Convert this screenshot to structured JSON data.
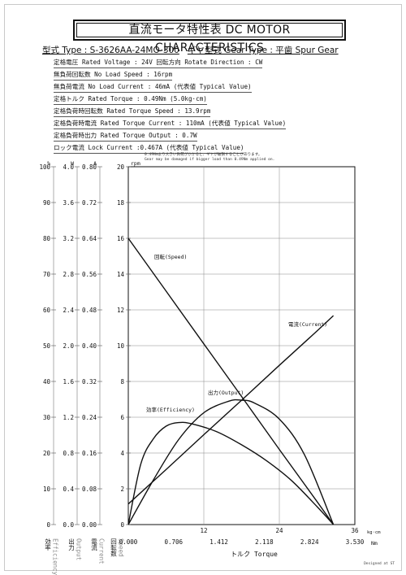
{
  "sheet": {
    "title": "直流モータ特性表 DC MOTOR CHARACTERISTICS",
    "model_label": "型式 Type : S-3626AA-24MO-300",
    "gear_label": "ギヤ型式 Gear Type : 平歯  Spur Gear",
    "specs": [
      "定格電圧 Rated Voltage : 24V   回転方向 Rotate Direction : CW",
      "無負荷回転数 No Load Speed : 16rpm",
      "無負荷電流 No Load Current : 46mA (代表値 Typical Value)",
      "定格トルク Rated Torque : 0.49Nm (5.0kg·cm)",
      "定格負荷時回転数 Rated Torque Speed : 13.9rpm",
      "定格負荷時電流 Rated Torque Current : 110mA (代表値 Typical Value)",
      "定格負荷時出力 Rated Torque Output : 0.7W",
      "ロック電流 Lock Current :0.467A (代表値 Typical Value)"
    ],
    "warning_jp": "0.49Nmより大きい負荷がかかると、ギヤが破損することがあります。",
    "warning_en": "Gear may be damaged if bigger load than 0.49Nm applied on.",
    "signature": "Designed at ST"
  },
  "chart_data": {
    "type": "line",
    "x_label": "トルク Torque",
    "x_unit_top": "kg·cm",
    "x_unit_bottom": "Nm",
    "x_ticks_kgcm": [
      "12",
      "24",
      "36"
    ],
    "x_ticks_nm": [
      "0.000",
      "0.706",
      "1.412",
      "2.118",
      "2.824",
      "3.530"
    ],
    "xlim_kgcm": [
      0,
      36
    ],
    "axes": {
      "efficiency": {
        "unit": "%",
        "label_jp": "効率",
        "label_en": "Efficiency",
        "ticks": [
          "100",
          "90",
          "80",
          "70",
          "60",
          "50",
          "40",
          "30",
          "20",
          "10",
          "0"
        ]
      },
      "output": {
        "unit": "W",
        "label_jp": "出力",
        "label_en": "Output",
        "ticks": [
          "4.0",
          "3.6",
          "3.2",
          "2.8",
          "2.4",
          "2.0",
          "1.6",
          "1.2",
          "0.8",
          "0.4",
          "0.0"
        ]
      },
      "current": {
        "unit": "A",
        "label_jp": "電流",
        "label_en": "Current",
        "ticks": [
          "0.80",
          "0.72",
          "0.64",
          "0.56",
          "0.48",
          "0.40",
          "0.32",
          "0.24",
          "0.16",
          "0.08",
          "0.00"
        ]
      },
      "speed": {
        "unit": "rpm",
        "label_jp": "回転数",
        "label_en": "Speed",
        "ticks": [
          "20",
          "18",
          "16",
          "14",
          "12",
          "10",
          "8",
          "6",
          "4",
          "2",
          "0"
        ]
      }
    },
    "ylim_speed": [
      0,
      20
    ],
    "series": [
      {
        "name": "回転(Speed)",
        "axis": "speed",
        "x": [
          0,
          6,
          12,
          18,
          24,
          30,
          32.6
        ],
        "y": [
          16.0,
          13.05,
          10.1,
          7.16,
          4.2,
          1.28,
          0
        ]
      },
      {
        "name": "電流(Current)",
        "axis": "current",
        "x": [
          0,
          6,
          12,
          18,
          24,
          30,
          32.6
        ],
        "y": [
          0.046,
          0.123,
          0.201,
          0.278,
          0.356,
          0.433,
          0.467
        ]
      },
      {
        "name": "出力(Output)",
        "axis": "output",
        "x": [
          0,
          4,
          8,
          12,
          16,
          18,
          20,
          24,
          28,
          32.6
        ],
        "y": [
          0,
          0.5,
          0.95,
          1.25,
          1.38,
          1.39,
          1.36,
          1.18,
          0.78,
          0
        ]
      },
      {
        "name": "効率(Efficiency)",
        "axis": "efficiency",
        "x": [
          0,
          2,
          4,
          6,
          8,
          10,
          14,
          18,
          22,
          26,
          30,
          32.6
        ],
        "y": [
          0,
          17,
          24,
          27.5,
          28.5,
          28.2,
          26,
          22.3,
          17.8,
          12.2,
          5,
          0
        ]
      }
    ]
  }
}
